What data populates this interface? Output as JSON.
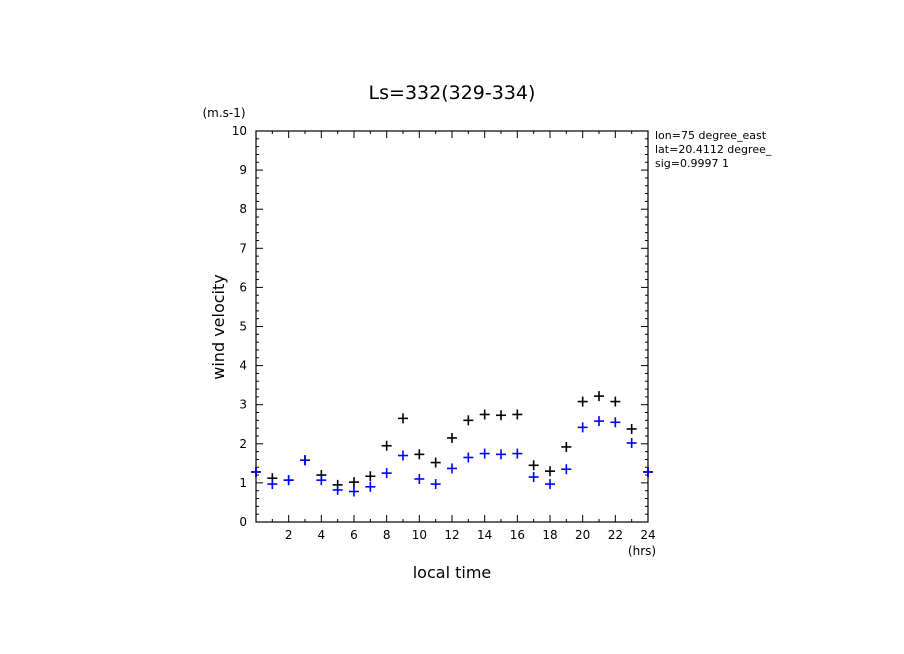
{
  "chart_data": {
    "type": "scatter",
    "title": "Ls=332(329-334)",
    "xlabel": "local time",
    "ylabel": "wind velocity",
    "x_unit": "(hrs)",
    "y_unit": "(m.s-1)",
    "xlim": [
      0,
      24
    ],
    "ylim": [
      0,
      10
    ],
    "x_tick_labels": [
      "2",
      "4",
      "6",
      "8",
      "10",
      "12",
      "14",
      "16",
      "18",
      "20",
      "22",
      "24"
    ],
    "y_tick_labels": [
      "0",
      "1",
      "2",
      "3",
      "4",
      "5",
      "6",
      "7",
      "8",
      "9",
      "10"
    ],
    "annotations": [
      "lon=75 degree_east",
      "lat=20.4112 degree_",
      "sig=0.9997 1"
    ],
    "marker": "+",
    "x": [
      0,
      1,
      2,
      3,
      4,
      5,
      6,
      7,
      8,
      9,
      10,
      11,
      12,
      13,
      14,
      15,
      16,
      17,
      18,
      19,
      20,
      21,
      22,
      23,
      24
    ],
    "series": [
      {
        "color": "#000000",
        "values": [
          1.28,
          1.12,
          1.07,
          1.58,
          1.2,
          0.95,
          1.02,
          1.17,
          1.95,
          2.65,
          1.73,
          1.52,
          2.15,
          2.6,
          2.75,
          2.73,
          2.75,
          1.45,
          1.3,
          1.92,
          3.08,
          3.22,
          3.08,
          2.38,
          1.28
        ]
      },
      {
        "color": "#0000ff",
        "values": [
          1.28,
          0.97,
          1.07,
          1.58,
          1.07,
          0.82,
          0.78,
          0.9,
          1.25,
          1.7,
          1.1,
          0.97,
          1.37,
          1.65,
          1.75,
          1.73,
          1.75,
          1.15,
          0.97,
          1.35,
          2.42,
          2.58,
          2.55,
          2.02,
          1.28
        ]
      }
    ]
  }
}
